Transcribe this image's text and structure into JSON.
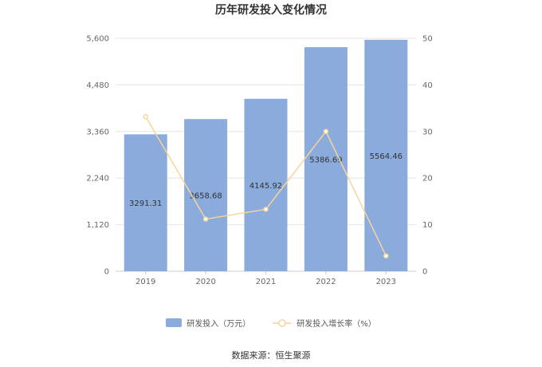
{
  "chart_data": {
    "type": "bar",
    "title": "历年研发投入变化情况",
    "categories": [
      "2019",
      "2020",
      "2021",
      "2022",
      "2023"
    ],
    "series": [
      {
        "name": "研发投入（万元）",
        "type": "bar",
        "axis": "left",
        "values": [
          3291.31,
          3658.68,
          4145.92,
          5386.69,
          5564.46
        ],
        "labels": [
          "3291.31",
          "3658.68",
          "4145.92",
          "5386.69",
          "5564.46"
        ],
        "color": "#8aabdb"
      },
      {
        "name": "研发投入增长率（%）",
        "type": "line",
        "axis": "right",
        "values": [
          33.2,
          11.2,
          13.3,
          30.0,
          3.3
        ],
        "color": "#f8d49a"
      }
    ],
    "y_left": {
      "ylim": [
        0,
        5600
      ],
      "ticks": [
        "0",
        "1,120",
        "2,240",
        "3,360",
        "4,480",
        "5,600"
      ]
    },
    "y_right": {
      "ylim": [
        0,
        50
      ],
      "ticks": [
        "0",
        "10",
        "20",
        "30",
        "40",
        "50"
      ]
    },
    "grid": true,
    "legend_position": "bottom"
  },
  "source": "数据来源：恒生聚源"
}
